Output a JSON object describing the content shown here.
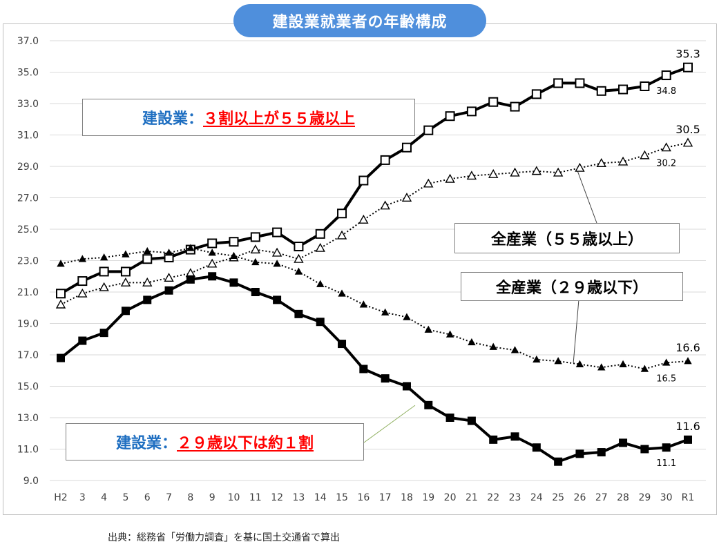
{
  "title": "建設業就業者の年齢構成",
  "footer": "出典：総務省「労働力調査」を基に国土交通省で算出",
  "annotations": {
    "box1_prefix": "建設業：",
    "box1_highlight": "３割以上が５５歳以上",
    "box2_label": "全産業（５５歳以上）",
    "box3_label": "全産業（２９歳以下）",
    "box4_prefix": "建設業：",
    "box4_highlight": "２９歳以下は約１割"
  },
  "colors": {
    "title_bg": "#4f8fdc",
    "label_blue": "#1f6fc1",
    "highlight_red": "#ff0000",
    "line": "#000000",
    "grid": "#d9d9d9"
  },
  "chart_data": {
    "type": "line",
    "categories": [
      "H2",
      "3",
      "4",
      "5",
      "6",
      "7",
      "8",
      "9",
      "10",
      "11",
      "12",
      "13",
      "14",
      "15",
      "16",
      "17",
      "18",
      "19",
      "20",
      "21",
      "22",
      "23",
      "24",
      "25",
      "26",
      "27",
      "28",
      "29",
      "30",
      "R1"
    ],
    "ylim": [
      9.0,
      37.0
    ],
    "yticks": [
      "9.0",
      "11.0",
      "13.0",
      "15.0",
      "17.0",
      "19.0",
      "21.0",
      "23.0",
      "25.0",
      "27.0",
      "29.0",
      "31.0",
      "33.0",
      "35.0",
      "37.0"
    ],
    "grid": true,
    "series": [
      {
        "key": "con55",
        "style": "solid-square",
        "values": [
          20.9,
          21.7,
          22.3,
          22.3,
          23.1,
          23.2,
          23.7,
          24.1,
          24.2,
          24.5,
          24.8,
          23.9,
          24.7,
          26.0,
          28.1,
          29.4,
          30.2,
          31.3,
          32.2,
          32.5,
          33.1,
          32.8,
          33.6,
          34.3,
          34.3,
          33.8,
          33.9,
          34.1,
          34.8,
          35.3
        ]
      },
      {
        "key": "all55",
        "style": "dotted-triangle",
        "values": [
          20.2,
          20.9,
          21.3,
          21.6,
          21.6,
          21.9,
          22.2,
          22.8,
          23.2,
          23.7,
          23.5,
          23.1,
          23.8,
          24.6,
          25.6,
          26.5,
          27.0,
          27.9,
          28.2,
          28.4,
          28.5,
          28.6,
          28.7,
          28.6,
          28.9,
          29.2,
          29.3,
          29.7,
          30.2,
          30.5
        ]
      },
      {
        "key": "all29",
        "style": "dotted-triangle-filled",
        "values": [
          22.8,
          23.1,
          23.2,
          23.4,
          23.6,
          23.5,
          23.8,
          23.5,
          23.3,
          22.9,
          22.8,
          22.3,
          21.5,
          20.9,
          20.2,
          19.7,
          19.4,
          18.6,
          18.3,
          17.8,
          17.5,
          17.3,
          16.7,
          16.6,
          16.4,
          16.2,
          16.4,
          16.1,
          16.5,
          16.6
        ]
      },
      {
        "key": "con29",
        "style": "solid-square-filled",
        "values": [
          16.8,
          17.9,
          18.4,
          19.8,
          20.5,
          21.1,
          21.8,
          22.0,
          21.6,
          21.0,
          20.5,
          19.6,
          19.1,
          17.7,
          16.1,
          15.5,
          15.0,
          13.8,
          13.0,
          12.8,
          11.6,
          11.8,
          11.1,
          10.2,
          10.7,
          10.8,
          11.4,
          11.0,
          11.1,
          11.6
        ]
      }
    ],
    "data_labels": [
      {
        "series": "con55",
        "index": 29,
        "text": "35.3",
        "pos": "above"
      },
      {
        "series": "con55",
        "index": 28,
        "text": "34.8",
        "pos": "below"
      },
      {
        "series": "all55",
        "index": 29,
        "text": "30.5",
        "pos": "above"
      },
      {
        "series": "all55",
        "index": 28,
        "text": "30.2",
        "pos": "below"
      },
      {
        "series": "all29",
        "index": 29,
        "text": "16.6",
        "pos": "above"
      },
      {
        "series": "all29",
        "index": 28,
        "text": "16.5",
        "pos": "below"
      },
      {
        "series": "con29",
        "index": 29,
        "text": "11.6",
        "pos": "above"
      },
      {
        "series": "con29",
        "index": 28,
        "text": "11.1",
        "pos": "below"
      }
    ]
  }
}
